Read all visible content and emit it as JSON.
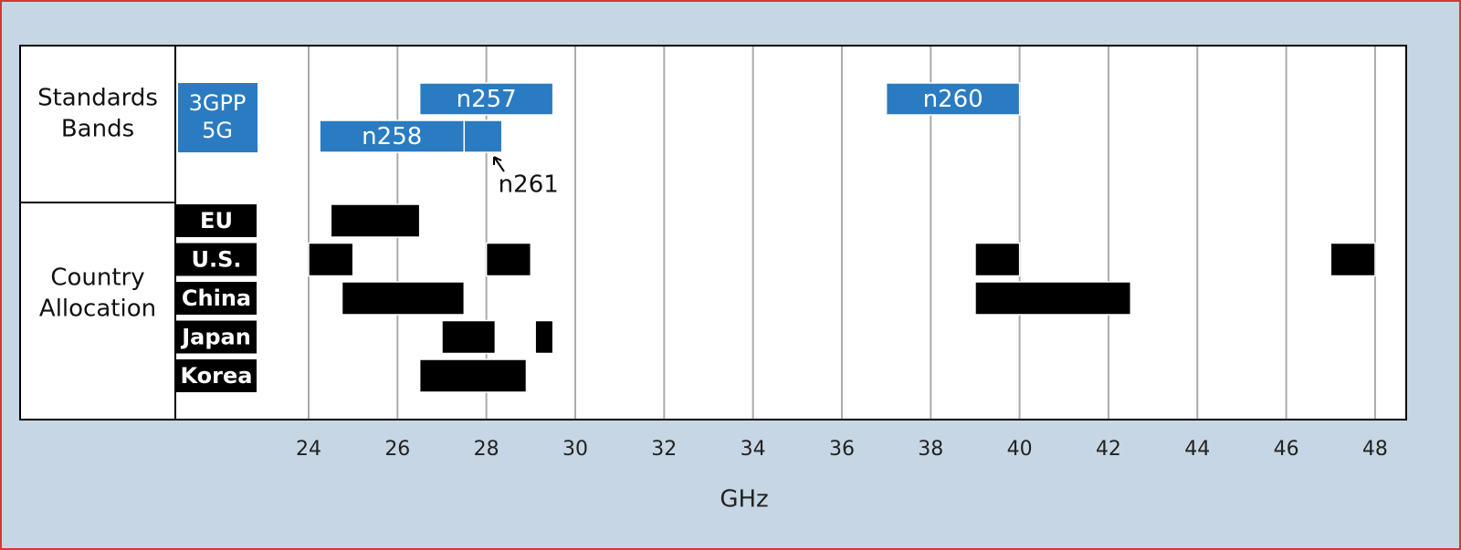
{
  "chart_data": {
    "type": "range",
    "x_label": "GHz",
    "xlim": [
      21,
      48.7
    ],
    "xticks": [
      24,
      26,
      28,
      30,
      32,
      34,
      36,
      38,
      40,
      42,
      44,
      46,
      48
    ],
    "grid": true,
    "groups": [
      {
        "label": [
          "Standards",
          "Bands"
        ],
        "tag": [
          "3GPP",
          "5G"
        ],
        "color": "#2a7bc1",
        "rows": [
          {
            "bars": [
              {
                "name": "n257",
                "start": 26.5,
                "end": 29.5
              },
              {
                "name": "n260",
                "start": 37,
                "end": 40
              }
            ]
          },
          {
            "bars": [
              {
                "name": "n258",
                "start": 24.25,
                "end": 27.5
              },
              {
                "start": 27.5,
                "end": 28.35,
                "annotation": "n261"
              }
            ]
          }
        ]
      },
      {
        "label": [
          "Country",
          "Allocation"
        ],
        "color": "#000000",
        "rows": [
          {
            "name": "EU",
            "bars": [
              {
                "start": 24.5,
                "end": 26.5
              }
            ]
          },
          {
            "name": "U.S.",
            "bars": [
              {
                "start": 24,
                "end": 25
              },
              {
                "start": 28,
                "end": 29
              },
              {
                "start": 39,
                "end": 40
              },
              {
                "start": 47,
                "end": 48
              }
            ]
          },
          {
            "name": "China",
            "bars": [
              {
                "start": 24.75,
                "end": 27.5
              },
              {
                "start": 39,
                "end": 42.5
              }
            ]
          },
          {
            "name": "Japan",
            "bars": [
              {
                "start": 27,
                "end": 28.2
              },
              {
                "start": 29.1,
                "end": 29.5
              }
            ]
          },
          {
            "name": "Korea",
            "bars": [
              {
                "start": 26.5,
                "end": 28.9
              }
            ]
          }
        ]
      }
    ]
  }
}
